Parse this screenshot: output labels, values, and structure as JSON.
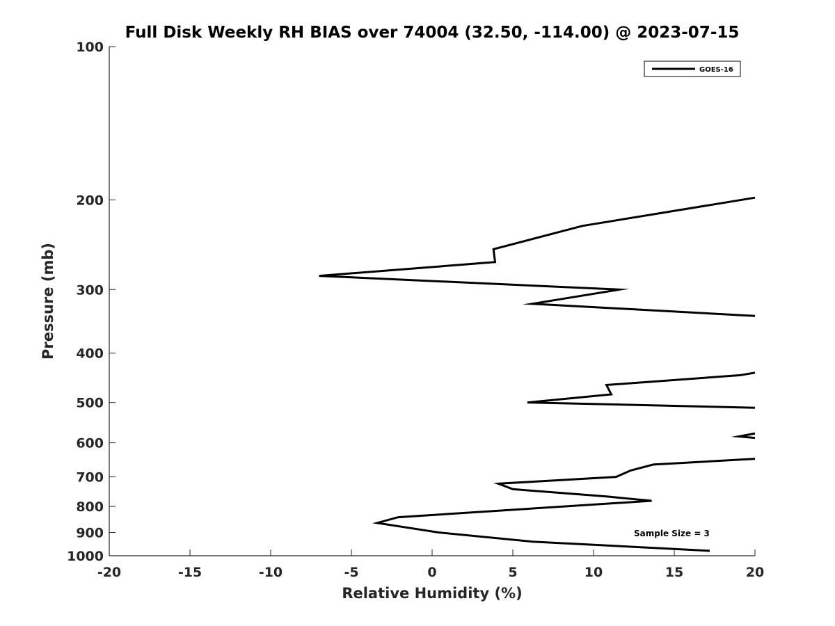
{
  "chart_data": {
    "type": "line",
    "title": "Full Disk Weekly RH BIAS over 74004 (32.50, -114.00) @ 2023-07-15",
    "xlabel": "Relative Humidity (%)",
    "ylabel": "Pressure (mb)",
    "xlim": [
      -20,
      20
    ],
    "ylim": [
      100,
      1000
    ],
    "y_scale": "log",
    "y_reversed": true,
    "x_ticks": [
      "-20",
      "-15",
      "-10",
      "-5",
      "0",
      "5",
      "10",
      "15",
      "20"
    ],
    "y_ticks": [
      "100",
      "200",
      "300",
      "400",
      "500",
      "600",
      "700",
      "800",
      "900",
      "1000"
    ],
    "grid": false,
    "legend": {
      "position": "top-right",
      "entries": [
        "GOES-16"
      ]
    },
    "annotation": "Sample Size = 3",
    "series": [
      {
        "name": "GOES-16",
        "color": "#000000",
        "segments": [
          [
            {
              "x": 20.0,
              "y": 198
            },
            {
              "x": 9.3,
              "y": 225
            },
            {
              "x": 3.8,
              "y": 250
            },
            {
              "x": 3.9,
              "y": 265
            },
            {
              "x": -7.0,
              "y": 282
            },
            {
              "x": 11.6,
              "y": 300
            },
            {
              "x": 6.2,
              "y": 320
            },
            {
              "x": 20.0,
              "y": 338
            }
          ],
          [
            {
              "x": 20.0,
              "y": 437
            },
            {
              "x": 19.1,
              "y": 442
            },
            {
              "x": 10.8,
              "y": 462
            },
            {
              "x": 11.1,
              "y": 482
            },
            {
              "x": 5.9,
              "y": 500
            },
            {
              "x": 20.0,
              "y": 512
            }
          ],
          [
            {
              "x": 20.0,
              "y": 575
            },
            {
              "x": 19.0,
              "y": 583
            },
            {
              "x": 20.0,
              "y": 587
            }
          ],
          [
            {
              "x": 20.0,
              "y": 645
            },
            {
              "x": 13.7,
              "y": 662
            },
            {
              "x": 12.3,
              "y": 680
            },
            {
              "x": 11.4,
              "y": 700
            },
            {
              "x": 4.1,
              "y": 722
            },
            {
              "x": 5.0,
              "y": 740
            },
            {
              "x": 10.8,
              "y": 765
            },
            {
              "x": 13.6,
              "y": 780
            },
            {
              "x": -2.1,
              "y": 840
            },
            {
              "x": -3.4,
              "y": 862
            },
            {
              "x": 0.4,
              "y": 900
            },
            {
              "x": 6.2,
              "y": 938
            },
            {
              "x": 17.2,
              "y": 978
            }
          ]
        ]
      }
    ]
  }
}
